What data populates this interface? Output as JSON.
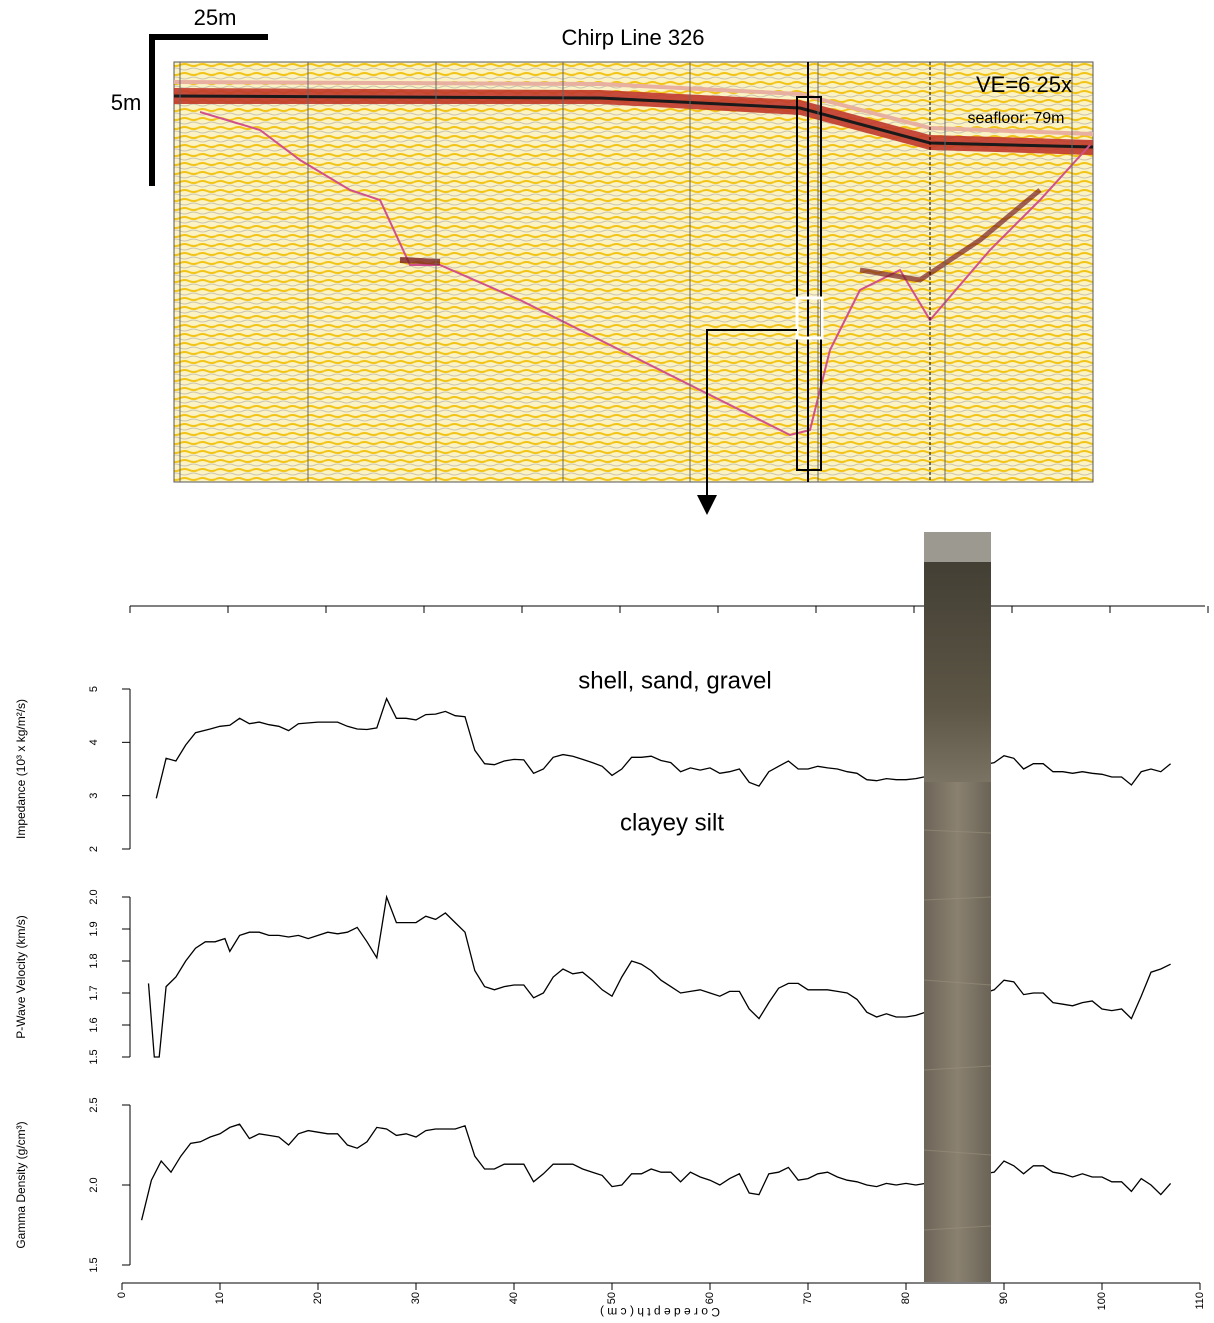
{
  "figure": {
    "scale_h": "25m",
    "scale_v": "5m",
    "title": "Chirp Line 326",
    "ve": "VE=6.25x",
    "seafloor": "seafloor: 79m",
    "label_top": "shell, sand, gravel",
    "label_bottom": "clayey silt"
  },
  "chart_data": [
    {
      "type": "line",
      "ylabel": "Impedance (10³ x kg/m²/s)",
      "color": "#000000",
      "x": [
        3.5,
        4.5,
        5.5,
        6.5,
        7.5,
        9,
        10,
        11,
        12,
        13,
        14,
        15,
        16,
        17,
        18,
        20,
        22,
        23,
        24,
        25,
        26,
        27,
        28,
        29,
        30,
        31,
        32,
        33,
        34,
        35,
        36,
        37,
        38,
        39,
        40,
        41,
        42,
        43,
        44,
        45,
        46,
        47,
        48,
        49,
        50,
        51,
        52,
        53,
        54,
        55,
        56,
        57,
        58,
        59,
        60,
        61,
        62,
        63,
        64,
        65,
        66,
        67,
        68,
        69,
        70,
        71,
        72,
        73,
        74,
        75,
        76,
        77,
        78,
        79,
        80,
        81,
        89,
        90,
        91,
        92,
        93,
        94,
        95,
        96,
        97,
        98,
        99,
        100,
        101,
        102,
        103,
        104,
        105,
        106,
        107
      ],
      "values": [
        2.95,
        3.7,
        3.65,
        3.95,
        4.18,
        4.25,
        4.3,
        4.32,
        4.45,
        4.35,
        4.38,
        4.33,
        4.3,
        4.22,
        4.35,
        4.38,
        4.38,
        4.3,
        4.25,
        4.24,
        4.27,
        4.82,
        4.45,
        4.45,
        4.42,
        4.52,
        4.53,
        4.58,
        4.5,
        4.48,
        3.85,
        3.6,
        3.58,
        3.65,
        3.68,
        3.67,
        3.42,
        3.5,
        3.72,
        3.77,
        3.74,
        3.68,
        3.62,
        3.55,
        3.38,
        3.5,
        3.72,
        3.72,
        3.74,
        3.66,
        3.62,
        3.45,
        3.52,
        3.48,
        3.52,
        3.42,
        3.45,
        3.5,
        3.25,
        3.18,
        3.45,
        3.55,
        3.65,
        3.5,
        3.5,
        3.55,
        3.52,
        3.5,
        3.45,
        3.42,
        3.3,
        3.28,
        3.32,
        3.3,
        3.3,
        3.32,
        3.62,
        3.75,
        3.7,
        3.5,
        3.6,
        3.6,
        3.45,
        3.45,
        3.42,
        3.45,
        3.42,
        3.4,
        3.35,
        3.35,
        3.2,
        3.45,
        3.5,
        3.45,
        3.6
      ],
      "xlim": [
        0,
        110
      ],
      "ylim": [
        2,
        5
      ],
      "yticks": [
        2,
        3,
        4,
        5
      ]
    },
    {
      "type": "line",
      "ylabel": "P-Wave Velocity (km/s)",
      "color": "#000000",
      "x": [
        2.7,
        3.3,
        3.8,
        4.5,
        5.5,
        6.5,
        7.5,
        8.5,
        9.5,
        10.5,
        11,
        12,
        13,
        14,
        15,
        16,
        17,
        18,
        19,
        20,
        21,
        22,
        23,
        24,
        25,
        26,
        27,
        28,
        29,
        30,
        31,
        32,
        33,
        34,
        35,
        36,
        37,
        38,
        39,
        40,
        41,
        42,
        43,
        44,
        45,
        46,
        47,
        48,
        49,
        50,
        51,
        52,
        53,
        54,
        55,
        56,
        57,
        58,
        59,
        60,
        61,
        62,
        63,
        64,
        65,
        66,
        67,
        68,
        69,
        70,
        71,
        72,
        73,
        74,
        75,
        76,
        77,
        78,
        79,
        80,
        81,
        89,
        90,
        91,
        92,
        93,
        94,
        95,
        96,
        97,
        98,
        99,
        100,
        101,
        102,
        103,
        104,
        105,
        106,
        107
      ],
      "values": [
        1.73,
        1.5,
        1.5,
        1.72,
        1.75,
        1.8,
        1.84,
        1.86,
        1.86,
        1.87,
        1.83,
        1.88,
        1.89,
        1.89,
        1.88,
        1.88,
        1.875,
        1.88,
        1.87,
        1.88,
        1.89,
        1.885,
        1.89,
        1.905,
        1.86,
        1.81,
        2.0,
        1.92,
        1.92,
        1.92,
        1.94,
        1.93,
        1.95,
        1.92,
        1.89,
        1.77,
        1.72,
        1.71,
        1.72,
        1.725,
        1.725,
        1.685,
        1.7,
        1.75,
        1.775,
        1.76,
        1.765,
        1.74,
        1.71,
        1.69,
        1.75,
        1.8,
        1.79,
        1.77,
        1.74,
        1.72,
        1.7,
        1.705,
        1.71,
        1.7,
        1.69,
        1.705,
        1.705,
        1.65,
        1.62,
        1.67,
        1.715,
        1.73,
        1.73,
        1.71,
        1.71,
        1.71,
        1.705,
        1.7,
        1.68,
        1.64,
        1.625,
        1.635,
        1.625,
        1.625,
        1.63,
        1.71,
        1.74,
        1.735,
        1.695,
        1.7,
        1.7,
        1.67,
        1.665,
        1.66,
        1.67,
        1.675,
        1.65,
        1.645,
        1.65,
        1.62,
        1.69,
        1.765,
        1.775,
        1.79
      ],
      "xlim": [
        0,
        110
      ],
      "ylim": [
        1.5,
        2.0
      ],
      "yticks": [
        1.5,
        1.6,
        1.7,
        1.8,
        1.9,
        {
          "value": 2,
          "label": "2.0"
        }
      ]
    },
    {
      "type": "line",
      "ylabel": "Gamma Density (g/cm³)",
      "xlabel": "C o r e   d e p t h   ( c m )",
      "color": "#000000",
      "x": [
        2,
        3,
        4,
        5,
        6,
        7,
        8,
        9,
        10,
        11,
        12,
        13,
        14,
        15,
        16,
        17,
        18,
        19,
        20,
        21,
        22,
        23,
        24,
        25,
        26,
        27,
        28,
        29,
        30,
        31,
        32,
        33,
        34,
        35,
        36,
        37,
        38,
        39,
        40,
        41,
        42,
        43,
        44,
        45,
        46,
        47,
        48,
        49,
        50,
        51,
        52,
        53,
        54,
        55,
        56,
        57,
        58,
        59,
        60,
        61,
        62,
        63,
        64,
        65,
        66,
        67,
        68,
        69,
        70,
        71,
        72,
        73,
        74,
        75,
        76,
        77,
        78,
        79,
        80,
        81,
        89,
        90,
        91,
        92,
        93,
        94,
        95,
        96,
        97,
        98,
        99,
        100,
        101,
        102,
        103,
        104,
        105,
        106,
        107
      ],
      "values": [
        1.78,
        2.03,
        2.15,
        2.08,
        2.18,
        2.26,
        2.27,
        2.3,
        2.32,
        2.36,
        2.38,
        2.29,
        2.32,
        2.31,
        2.3,
        2.25,
        2.32,
        2.34,
        2.33,
        2.32,
        2.32,
        2.25,
        2.23,
        2.27,
        2.36,
        2.35,
        2.31,
        2.32,
        2.3,
        2.34,
        2.35,
        2.35,
        2.35,
        2.37,
        2.18,
        2.1,
        2.1,
        2.13,
        2.13,
        2.13,
        2.02,
        2.07,
        2.13,
        2.13,
        2.13,
        2.1,
        2.08,
        2.06,
        1.99,
        2.0,
        2.07,
        2.07,
        2.1,
        2.08,
        2.08,
        2.02,
        2.08,
        2.05,
        2.03,
        2.0,
        2.04,
        2.07,
        1.95,
        1.94,
        2.07,
        2.08,
        2.11,
        2.03,
        2.04,
        2.07,
        2.08,
        2.05,
        2.03,
        2.02,
        2.0,
        1.99,
        2.01,
        2.0,
        2.01,
        2.0,
        2.08,
        2.15,
        2.12,
        2.07,
        2.12,
        2.12,
        2.08,
        2.07,
        2.05,
        2.07,
        2.05,
        2.05,
        2.02,
        2.02,
        1.96,
        2.04,
        2.0,
        1.94,
        2.01
      ],
      "xlim": [
        0,
        110
      ],
      "ylim": [
        1.5,
        2.5
      ],
      "yticks": [
        1.5,
        {
          "value": 2,
          "label": "2.0"
        },
        2.5
      ],
      "xticks": [
        0,
        10,
        20,
        30,
        40,
        50,
        60,
        70,
        80,
        90,
        100,
        110
      ]
    }
  ]
}
